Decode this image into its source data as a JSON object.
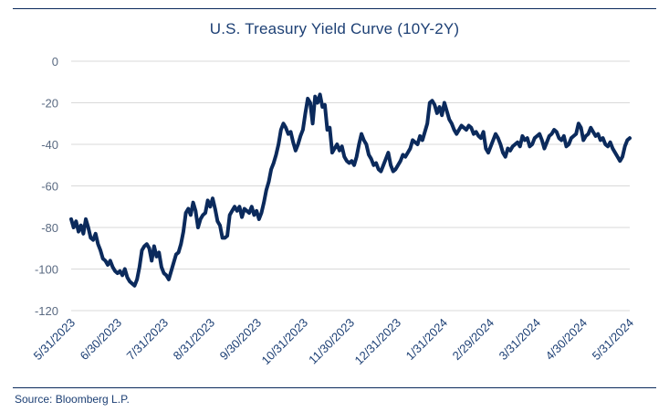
{
  "chart_data": {
    "type": "line",
    "title": "U.S. Treasury Yield Curve (10Y-2Y)",
    "xlabel": "",
    "ylabel": "",
    "ylim": [
      -120,
      0
    ],
    "yticks": [
      0,
      -20,
      -40,
      -60,
      -80,
      -100,
      -120
    ],
    "grid": true,
    "line_color": "#0b2a5c",
    "x_tick_labels": [
      "5/31/2023",
      "6/30/2023",
      "7/31/2023",
      "8/31/2023",
      "9/30/2023",
      "10/31/2023",
      "11/30/2023",
      "12/31/2023",
      "1/31/2024",
      "2/29/2024",
      "3/31/2024",
      "4/30/2024",
      "5/31/2024"
    ],
    "series": [
      {
        "values": [
          -76,
          -80,
          -77,
          -82,
          -79,
          -83,
          -76,
          -80,
          -85,
          -86,
          -83,
          -88,
          -91,
          -95,
          -96,
          -98,
          -96,
          -99,
          -101,
          -102,
          -101,
          -103,
          -100,
          -104,
          -106,
          -107,
          -108,
          -105,
          -99,
          -91,
          -89,
          -88,
          -90,
          -96,
          -89,
          -94,
          -92,
          -99,
          -102,
          -103,
          -105,
          -101,
          -97,
          -93,
          -92,
          -88,
          -82,
          -73,
          -71,
          -74,
          -68,
          -72,
          -80,
          -76,
          -74,
          -73,
          -67,
          -70,
          -66,
          -71,
          -77,
          -79,
          -85,
          -85,
          -84,
          -74,
          -72,
          -70,
          -72,
          -70,
          -75,
          -71,
          -72,
          -73,
          -70,
          -74,
          -72,
          -76,
          -73,
          -68,
          -62,
          -58,
          -52,
          -49,
          -45,
          -40,
          -33,
          -30,
          -32,
          -35,
          -34,
          -39,
          -43,
          -40,
          -36,
          -33,
          -25,
          -18,
          -20,
          -30,
          -17,
          -20,
          -16,
          -22,
          -21,
          -33,
          -32,
          -44,
          -42,
          -40,
          -43,
          -41,
          -46,
          -48,
          -49,
          -48,
          -50,
          -46,
          -40,
          -35,
          -38,
          -40,
          -45,
          -47,
          -50,
          -49,
          -52,
          -53,
          -50,
          -47,
          -44,
          -50,
          -53,
          -52,
          -50,
          -48,
          -45,
          -46,
          -44,
          -42,
          -38,
          -39,
          -40,
          -36,
          -38,
          -34,
          -30,
          -20,
          -19,
          -21,
          -25,
          -22,
          -26,
          -20,
          -24,
          -28,
          -30,
          -33,
          -35,
          -33,
          -31,
          -32,
          -33,
          -31,
          -32,
          -35,
          -34,
          -36,
          -37,
          -34,
          -42,
          -44,
          -41,
          -38,
          -35,
          -37,
          -40,
          -44,
          -46,
          -42,
          -43,
          -41,
          -40,
          -39,
          -41,
          -36,
          -38,
          -37,
          -41,
          -40,
          -37,
          -36,
          -35,
          -38,
          -42,
          -39,
          -36,
          -35,
          -33,
          -34,
          -37,
          -38,
          -36,
          -41,
          -40,
          -37,
          -36,
          -35,
          -30,
          -32,
          -38,
          -36,
          -35,
          -32,
          -34,
          -36,
          -35,
          -38,
          -37,
          -40,
          -41,
          -39,
          -42,
          -44,
          -46,
          -48,
          -46,
          -41,
          -38,
          -37
        ]
      }
    ]
  },
  "source": "Source: Bloomberg L.P."
}
